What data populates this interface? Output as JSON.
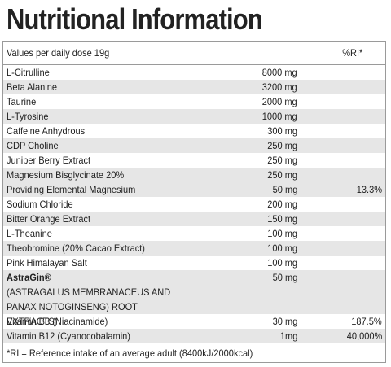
{
  "title": "Nutritional Information",
  "header": {
    "label": "Values per daily dose 19g",
    "ri_label": "%RI*"
  },
  "rows": [
    {
      "name": "L-Citrulline",
      "amount": "8000 mg",
      "ri": ""
    },
    {
      "name": "Beta Alanine",
      "amount": "3200 mg",
      "ri": ""
    },
    {
      "name": "Taurine",
      "amount": "2000 mg",
      "ri": ""
    },
    {
      "name": "L-Tyrosine",
      "amount": "1000 mg",
      "ri": ""
    },
    {
      "name": "Caffeine Anhydrous",
      "amount": "300 mg",
      "ri": ""
    },
    {
      "name": "CDP Choline",
      "amount": "250 mg",
      "ri": ""
    },
    {
      "name": "Juniper Berry Extract",
      "amount": "250 mg",
      "ri": ""
    },
    {
      "name": "Magnesium Bisglycinate 20%",
      "amount": "250 mg",
      "ri": ""
    },
    {
      "name": "Providing Elemental Magnesium",
      "amount": "50 mg",
      "ri": "13.3%"
    },
    {
      "name": "Sodium Chloride",
      "amount": "200 mg",
      "ri": ""
    },
    {
      "name": "Bitter Orange Extract",
      "amount": "150 mg",
      "ri": ""
    },
    {
      "name": "L-Theanine",
      "amount": "100 mg",
      "ri": ""
    },
    {
      "name": "Theobromine (20% Cacao Extract)",
      "amount": "100 mg",
      "ri": ""
    },
    {
      "name": "Pink Himalayan Salt",
      "amount": "100 mg",
      "ri": ""
    }
  ],
  "astragin": {
    "name": "AstraGin®",
    "detail": "(ASTRAGALUS MEMBRANACEUS AND PANAX NOTOGINSENG) ROOT EXTRACTS)",
    "amount": "50 mg",
    "ri": ""
  },
  "vitamins": [
    {
      "name": "Vitamin B3 (Niacinamide)",
      "amount": "30 mg",
      "ri": "187.5%"
    },
    {
      "name": "Vitamin B12 (Cyanocobalamin)",
      "amount": "1mg",
      "ri": "40,000%"
    }
  ],
  "footnote": "*RI = Reference intake of an average adult (8400kJ/2000kcal)"
}
